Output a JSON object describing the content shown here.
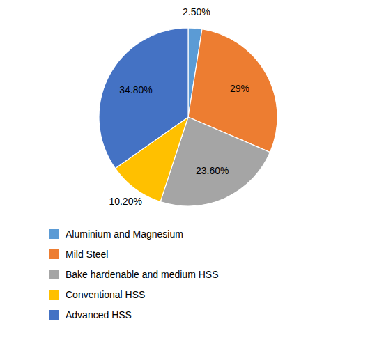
{
  "chart_data": {
    "type": "pie",
    "categories": [
      "Aluminium and Magnesium",
      "Mild Steel",
      "Bake hardenable and medium HSS",
      "Conventional HSS",
      "Advanced HSS"
    ],
    "values": [
      2.5,
      29.0,
      23.6,
      10.2,
      34.8
    ],
    "value_labels": [
      "2.50%",
      "29%",
      "23.60%",
      "10.20%",
      "34.80%"
    ],
    "colors": [
      "#5B9BD5",
      "#ED7D31",
      "#A5A5A5",
      "#FFC000",
      "#4472C4"
    ],
    "data_labels": true,
    "legend": "bottom"
  }
}
